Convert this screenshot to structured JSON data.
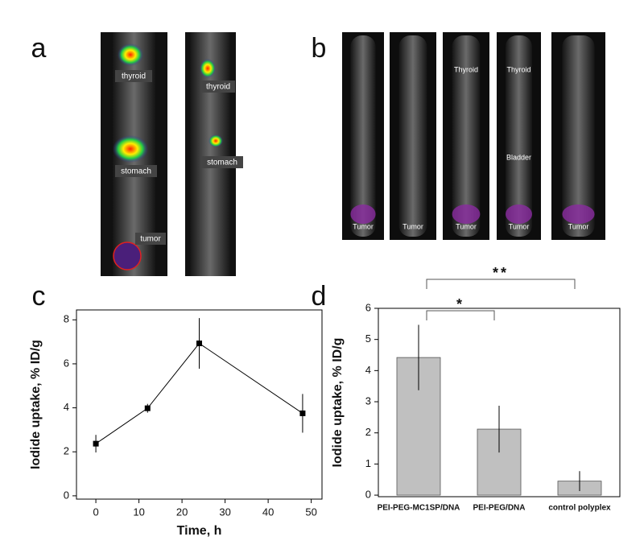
{
  "figure": {
    "panels": [
      "a",
      "b",
      "c",
      "d"
    ],
    "image_a_labels": [
      [
        "thyroid",
        "stomach",
        "tumor"
      ],
      [
        "thyroid",
        "stomach"
      ]
    ],
    "image_b_labels": [
      [
        "Tumor"
      ],
      [
        "Tumor"
      ],
      [
        "Thyroid",
        "Tumor"
      ],
      [
        "Thyroid",
        "Bladder",
        "Tumor"
      ],
      [
        "Tumor"
      ]
    ]
  },
  "chart_data": [
    {
      "type": "line",
      "xlabel": "Time, h",
      "ylabel": "Iodide uptake, % ID/g",
      "x": [
        0,
        12,
        24,
        48
      ],
      "values": [
        2.37,
        3.98,
        6.93,
        3.75
      ],
      "errors": [
        0.4,
        0.2,
        1.15,
        0.88
      ],
      "color": "#000000",
      "xlim": [
        -4.5,
        52.5
      ],
      "ylim": [
        -0.15,
        8.45
      ],
      "xticks": [
        0,
        10,
        20,
        30,
        40,
        50
      ],
      "yticks": [
        0,
        2,
        4,
        6,
        8
      ]
    },
    {
      "type": "bar",
      "ylabel": "Iodide uptake, % ID/g",
      "categories": [
        "PEI-PEG-MC1SP/DNA",
        "PEI-PEG/DNA",
        "control polyplex"
      ],
      "values": [
        4.42,
        2.12,
        0.45
      ],
      "errors": [
        1.05,
        0.75,
        0.32
      ],
      "color": "#c0c0c0",
      "ylim": [
        -0.05,
        6
      ],
      "yticks": [
        0,
        1,
        2,
        3,
        4,
        5,
        6
      ],
      "annotations": [
        "*",
        "**"
      ]
    }
  ]
}
